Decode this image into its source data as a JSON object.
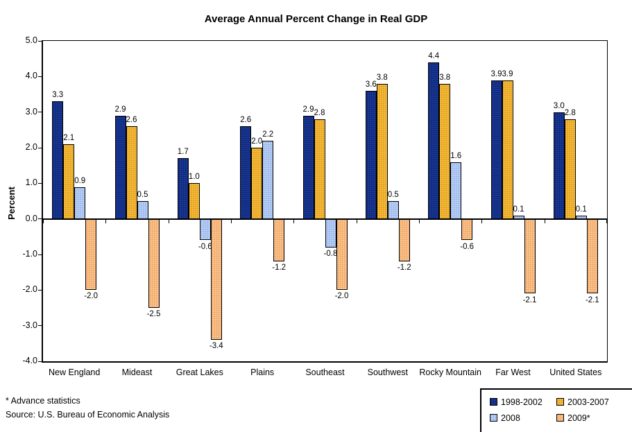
{
  "chart_data": {
    "type": "bar",
    "title": "Average Annual Percent Change in Real GDP",
    "xlabel": "",
    "ylabel": "Percent",
    "ylim": [
      -4.0,
      5.0
    ],
    "ytick_step": 1.0,
    "ytick_labels": [
      "5.0",
      "4.0",
      "3.0",
      "2.0",
      "1.0",
      "0.0",
      "-1.0",
      "-2.0",
      "-3.0",
      "-4.0"
    ],
    "grid": false,
    "legend_position": "bottom-right",
    "categories": [
      "New England",
      "Mideast",
      "Great Lakes",
      "Plains",
      "Southeast",
      "Southwest",
      "Rocky Mountain",
      "Far West",
      "United States"
    ],
    "series": [
      {
        "name": "1998-2002",
        "fill": "#1A3A99",
        "dot": "#0B1F66",
        "values": [
          3.3,
          2.9,
          1.7,
          2.6,
          2.9,
          3.6,
          4.4,
          3.9,
          3.0
        ]
      },
      {
        "name": "2003-2007",
        "fill": "#E8A41A",
        "dot": "#F6C95C",
        "values": [
          2.1,
          2.6,
          1.0,
          2.0,
          2.8,
          3.8,
          3.8,
          3.9,
          2.8
        ]
      },
      {
        "name": "2008",
        "fill": "#B9D3F7",
        "dot": "#93A9E3",
        "values": [
          0.9,
          0.5,
          -0.6,
          2.2,
          -0.8,
          0.5,
          1.6,
          0.1,
          0.1
        ]
      },
      {
        "name": "2009*",
        "fill": "#F8CC7A",
        "dot": "#EF9184",
        "values": [
          -2.0,
          -2.5,
          -3.4,
          -1.2,
          -2.0,
          -1.2,
          -0.6,
          -2.1,
          -2.1
        ]
      }
    ],
    "footnote": "* Advance statistics",
    "source": "Source:  U.S. Bureau of Economic Analysis"
  },
  "colors": {
    "axis": "#000000",
    "background": "#ffffff",
    "text": "#000000"
  }
}
